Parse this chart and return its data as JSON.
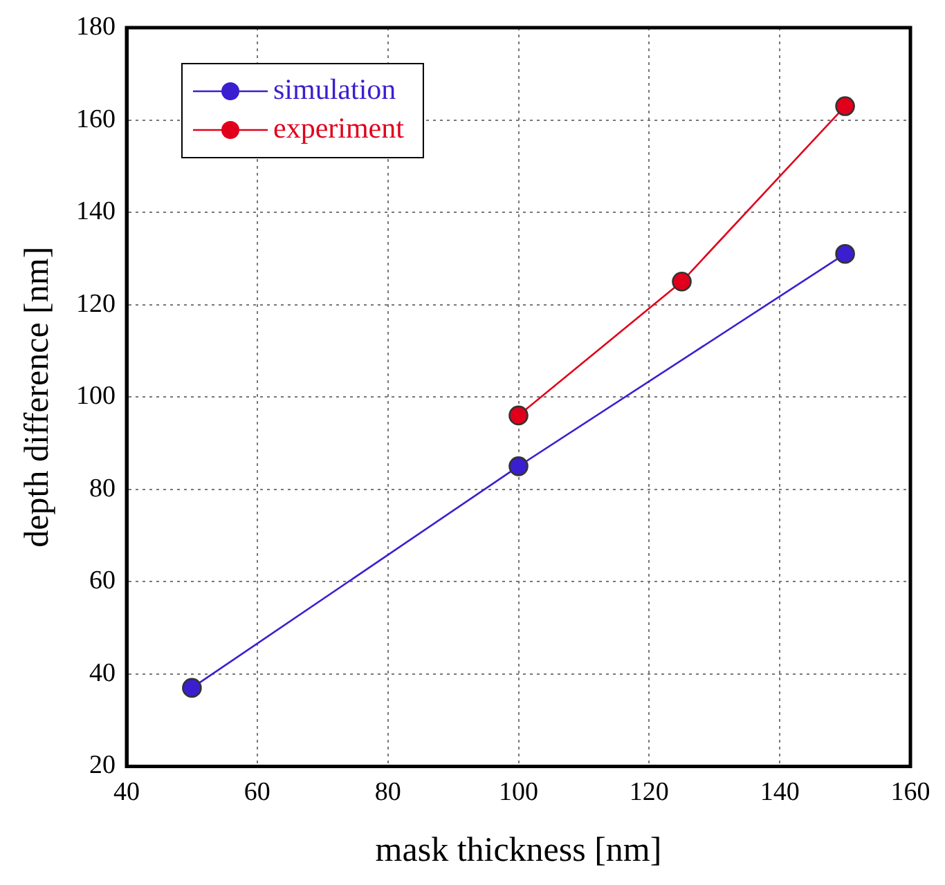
{
  "chart_data": {
    "type": "line",
    "xlabel": "mask thickness [nm]",
    "ylabel": "depth difference [nm]",
    "xlim": [
      40,
      160
    ],
    "xticks": [
      40,
      60,
      80,
      100,
      120,
      140,
      160
    ],
    "ylim": [
      20,
      180
    ],
    "yticks": [
      20,
      40,
      60,
      80,
      100,
      120,
      140,
      160,
      180
    ],
    "grid": true,
    "legend": "top left",
    "marker": "circle",
    "line_style": "solid",
    "series": [
      {
        "name": "simulation",
        "color": "#3a1fd0",
        "x": [
          50,
          100,
          150
        ],
        "values": [
          37,
          85,
          131
        ]
      },
      {
        "name": "experiment",
        "color": "#e0001b",
        "x": [
          100,
          125,
          150
        ],
        "values": [
          96,
          125,
          163
        ]
      }
    ]
  }
}
